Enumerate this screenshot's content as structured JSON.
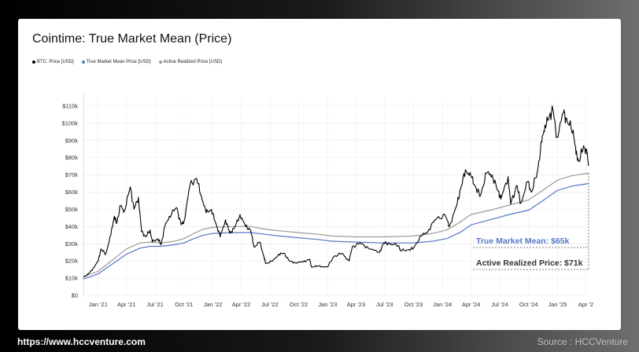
{
  "title": "Cointime: True Market Mean (Price)",
  "footer": {
    "url": "https://www.hccventure.com",
    "source": "Source : HCCVenture"
  },
  "colors": {
    "btc": "#000000",
    "tmm": "#5578c6",
    "arp": "#9a9a9a"
  },
  "chart_data": {
    "type": "line",
    "title": "Cointime: True Market Mean (Price)",
    "xlabel": "",
    "ylabel": "",
    "grid": true,
    "legend_position": "top-left",
    "legend": [
      "BTC: Price [USD]",
      "True Market Mean Price [USD]",
      "Active Realized Price [USD]"
    ],
    "x_range": [
      "2020-11-15",
      "2025-04-10"
    ],
    "ylim": [
      0,
      115000
    ],
    "x_ticks": [
      {
        "date": "2021-01-01",
        "label": "Jan '21"
      },
      {
        "date": "2021-04-01",
        "label": "Apr '21"
      },
      {
        "date": "2021-07-01",
        "label": "Jul '21"
      },
      {
        "date": "2021-10-01",
        "label": "Oct '21"
      },
      {
        "date": "2022-01-01",
        "label": "Jan '22"
      },
      {
        "date": "2022-04-01",
        "label": "Apr '22"
      },
      {
        "date": "2022-07-01",
        "label": "Jul '22"
      },
      {
        "date": "2022-10-01",
        "label": "Oct '22"
      },
      {
        "date": "2023-01-01",
        "label": "Jan '23"
      },
      {
        "date": "2023-04-01",
        "label": "Apr '23"
      },
      {
        "date": "2023-07-01",
        "label": "Jul '23"
      },
      {
        "date": "2023-10-01",
        "label": "Oct '23"
      },
      {
        "date": "2024-01-01",
        "label": "Jan '24"
      },
      {
        "date": "2024-04-01",
        "label": "Apr '24"
      },
      {
        "date": "2024-07-01",
        "label": "Jul '24"
      },
      {
        "date": "2024-10-01",
        "label": "Oct '24"
      },
      {
        "date": "2025-01-01",
        "label": "Jan '25"
      },
      {
        "date": "2025-04-01",
        "label": "Apr '2"
      }
    ],
    "y_ticks": [
      {
        "value": 0,
        "label": "$0"
      },
      {
        "value": 10000,
        "label": "$10k"
      },
      {
        "value": 20000,
        "label": "$20k"
      },
      {
        "value": 30000,
        "label": "$30k"
      },
      {
        "value": 40000,
        "label": "$40k"
      },
      {
        "value": 50000,
        "label": "$50k"
      },
      {
        "value": 60000,
        "label": "$60k"
      },
      {
        "value": 70000,
        "label": "$70k"
      },
      {
        "value": 80000,
        "label": "$80k"
      },
      {
        "value": 90000,
        "label": "$90k"
      },
      {
        "value": 100000,
        "label": "$100k"
      },
      {
        "value": 110000,
        "label": "$110k"
      }
    ],
    "series": [
      {
        "name": "BTC: Price [USD]",
        "color": "#000000",
        "points": [
          [
            "2020-11-15",
            10500
          ],
          [
            "2020-12-01",
            12500
          ],
          [
            "2020-12-15",
            15500
          ],
          [
            "2021-01-01",
            20000
          ],
          [
            "2021-01-10",
            27000
          ],
          [
            "2021-01-25",
            24000
          ],
          [
            "2021-02-10",
            35000
          ],
          [
            "2021-02-21",
            46000
          ],
          [
            "2021-03-01",
            42000
          ],
          [
            "2021-03-13",
            52000
          ],
          [
            "2021-03-25",
            49000
          ],
          [
            "2021-04-13",
            63000
          ],
          [
            "2021-04-25",
            50000
          ],
          [
            "2021-05-09",
            57000
          ],
          [
            "2021-05-19",
            37000
          ],
          [
            "2021-06-01",
            34000
          ],
          [
            "2021-06-15",
            38000
          ],
          [
            "2021-06-22",
            31000
          ],
          [
            "2021-07-10",
            33000
          ],
          [
            "2021-07-20",
            29500
          ],
          [
            "2021-08-01",
            40000
          ],
          [
            "2021-08-15",
            46000
          ],
          [
            "2021-09-07",
            51000
          ],
          [
            "2021-09-22",
            41000
          ],
          [
            "2021-10-01",
            43000
          ],
          [
            "2021-10-20",
            64000
          ],
          [
            "2021-11-10",
            68000
          ],
          [
            "2021-11-25",
            58000
          ],
          [
            "2021-12-10",
            48000
          ],
          [
            "2021-12-27",
            50000
          ],
          [
            "2022-01-10",
            42000
          ],
          [
            "2022-01-24",
            34000
          ],
          [
            "2022-02-10",
            44000
          ],
          [
            "2022-02-24",
            36000
          ],
          [
            "2022-03-10",
            39000
          ],
          [
            "2022-03-28",
            47000
          ],
          [
            "2022-04-15",
            40000
          ],
          [
            "2022-05-01",
            38000
          ],
          [
            "2022-05-12",
            28000
          ],
          [
            "2022-05-30",
            31000
          ],
          [
            "2022-06-13",
            22000
          ],
          [
            "2022-06-18",
            18500
          ],
          [
            "2022-07-10",
            20000
          ],
          [
            "2022-07-30",
            24000
          ],
          [
            "2022-08-15",
            24500
          ],
          [
            "2022-09-01",
            20000
          ],
          [
            "2022-09-20",
            19000
          ],
          [
            "2022-10-15",
            19500
          ],
          [
            "2022-11-05",
            21000
          ],
          [
            "2022-11-10",
            16500
          ],
          [
            "2022-12-01",
            17000
          ],
          [
            "2022-12-31",
            16500
          ],
          [
            "2023-01-20",
            22500
          ],
          [
            "2023-02-15",
            24500
          ],
          [
            "2023-03-10",
            20000
          ],
          [
            "2023-03-20",
            28000
          ],
          [
            "2023-04-14",
            30500
          ],
          [
            "2023-05-10",
            27500
          ],
          [
            "2023-06-15",
            25000
          ],
          [
            "2023-06-28",
            30500
          ],
          [
            "2023-07-15",
            30000
          ],
          [
            "2023-08-15",
            29000
          ],
          [
            "2023-08-20",
            26000
          ],
          [
            "2023-09-15",
            26500
          ],
          [
            "2023-10-01",
            27500
          ],
          [
            "2023-10-25",
            34500
          ],
          [
            "2023-11-15",
            37000
          ],
          [
            "2023-12-08",
            44000
          ],
          [
            "2024-01-10",
            46500
          ],
          [
            "2024-01-23",
            40000
          ],
          [
            "2024-02-15",
            52000
          ],
          [
            "2024-02-28",
            62000
          ],
          [
            "2024-03-14",
            73000
          ],
          [
            "2024-04-01",
            69000
          ],
          [
            "2024-04-15",
            63000
          ],
          [
            "2024-05-01",
            58000
          ],
          [
            "2024-05-20",
            71000
          ],
          [
            "2024-06-07",
            70000
          ],
          [
            "2024-06-25",
            61000
          ],
          [
            "2024-07-05",
            56000
          ],
          [
            "2024-07-28",
            69000
          ],
          [
            "2024-08-05",
            53000
          ],
          [
            "2024-08-25",
            64000
          ],
          [
            "2024-09-06",
            53500
          ],
          [
            "2024-09-28",
            66000
          ],
          [
            "2024-10-10",
            60000
          ],
          [
            "2024-10-29",
            72000
          ],
          [
            "2024-11-12",
            89000
          ],
          [
            "2024-11-22",
            99000
          ],
          [
            "2024-12-05",
            103000
          ],
          [
            "2024-12-17",
            108000
          ],
          [
            "2024-12-30",
            92000
          ],
          [
            "2025-01-20",
            106000
          ],
          [
            "2025-02-01",
            101000
          ],
          [
            "2025-02-20",
            96000
          ],
          [
            "2025-03-01",
            82000
          ],
          [
            "2025-03-10",
            78000
          ],
          [
            "2025-03-25",
            87000
          ],
          [
            "2025-04-05",
            82000
          ],
          [
            "2025-04-10",
            76000
          ]
        ]
      },
      {
        "name": "True Market Mean Price [USD]",
        "color": "#5578c6",
        "points": [
          [
            "2020-11-15",
            9500
          ],
          [
            "2021-01-01",
            12500
          ],
          [
            "2021-02-01",
            16500
          ],
          [
            "2021-03-01",
            20000
          ],
          [
            "2021-04-01",
            24000
          ],
          [
            "2021-05-15",
            27500
          ],
          [
            "2021-06-15",
            28500
          ],
          [
            "2021-07-20",
            28500
          ],
          [
            "2021-09-01",
            29500
          ],
          [
            "2021-10-01",
            30500
          ],
          [
            "2021-11-01",
            33000
          ],
          [
            "2021-12-01",
            35000
          ],
          [
            "2022-01-01",
            36000
          ],
          [
            "2022-03-01",
            36500
          ],
          [
            "2022-05-01",
            36500
          ],
          [
            "2022-06-15",
            35500
          ],
          [
            "2022-08-01",
            34500
          ],
          [
            "2022-10-01",
            33500
          ],
          [
            "2022-12-01",
            32500
          ],
          [
            "2023-01-15",
            31500
          ],
          [
            "2023-04-01",
            31000
          ],
          [
            "2023-07-01",
            30500
          ],
          [
            "2023-10-01",
            30500
          ],
          [
            "2023-12-01",
            31500
          ],
          [
            "2024-01-15",
            33000
          ],
          [
            "2024-03-01",
            37000
          ],
          [
            "2024-04-01",
            41000
          ],
          [
            "2024-06-01",
            44000
          ],
          [
            "2024-08-01",
            47000
          ],
          [
            "2024-10-01",
            49500
          ],
          [
            "2024-11-15",
            55000
          ],
          [
            "2025-01-01",
            61000
          ],
          [
            "2025-02-15",
            63500
          ],
          [
            "2025-04-10",
            65000
          ]
        ]
      },
      {
        "name": "Active Realized Price [USD]",
        "color": "#9a9a9a",
        "points": [
          [
            "2020-11-15",
            11000
          ],
          [
            "2021-01-01",
            14000
          ],
          [
            "2021-02-01",
            18500
          ],
          [
            "2021-03-01",
            22500
          ],
          [
            "2021-04-01",
            27000
          ],
          [
            "2021-05-15",
            30500
          ],
          [
            "2021-06-15",
            31000
          ],
          [
            "2021-07-20",
            30500
          ],
          [
            "2021-09-01",
            31500
          ],
          [
            "2021-10-01",
            33000
          ],
          [
            "2021-11-01",
            36000
          ],
          [
            "2021-12-01",
            38500
          ],
          [
            "2022-01-01",
            39500
          ],
          [
            "2022-03-01",
            40000
          ],
          [
            "2022-05-01",
            40000
          ],
          [
            "2022-06-15",
            38500
          ],
          [
            "2022-08-01",
            37500
          ],
          [
            "2022-10-01",
            36500
          ],
          [
            "2022-12-01",
            35500
          ],
          [
            "2023-01-15",
            34500
          ],
          [
            "2023-04-01",
            34000
          ],
          [
            "2023-07-01",
            34000
          ],
          [
            "2023-10-01",
            34500
          ],
          [
            "2023-12-01",
            36000
          ],
          [
            "2024-01-15",
            38000
          ],
          [
            "2024-03-01",
            43000
          ],
          [
            "2024-04-01",
            47000
          ],
          [
            "2024-06-01",
            49500
          ],
          [
            "2024-08-01",
            52500
          ],
          [
            "2024-10-01",
            55500
          ],
          [
            "2024-11-15",
            61000
          ],
          [
            "2025-01-01",
            67000
          ],
          [
            "2025-02-15",
            69500
          ],
          [
            "2025-04-10",
            71000
          ]
        ]
      }
    ],
    "annotations": [
      {
        "label": "True Market Mean: $65k",
        "value": 65000,
        "color": "#5578c6"
      },
      {
        "label": "Active Realized Price: $71k",
        "value": 71000,
        "color": "#333333"
      }
    ]
  }
}
